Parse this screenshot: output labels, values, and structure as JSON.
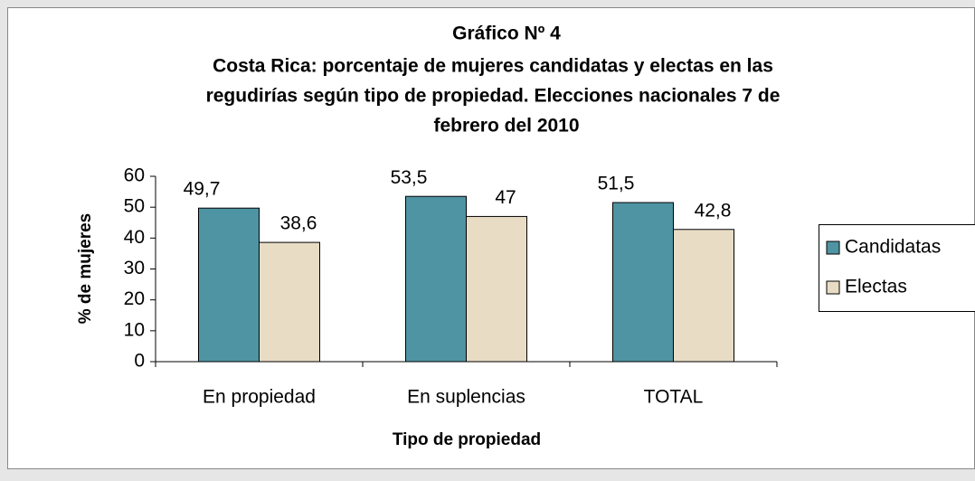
{
  "chart_data": {
    "type": "bar",
    "title": "Gráfico Nº 4",
    "subtitle_lines": [
      "Costa Rica: porcentaje de mujeres candidatas y electas en las",
      "regudirías según tipo de propiedad.  Elecciones nacionales 7 de",
      "febrero del 2010"
    ],
    "x_label": "Tipo de propiedad",
    "y_label": "% de mujeres",
    "categories": [
      "En propiedad",
      "En suplencias",
      "TOTAL"
    ],
    "series": [
      {
        "name": "Candidatas",
        "color": "#4f94a3",
        "values": [
          49.7,
          53.5,
          51.5
        ],
        "value_labels": [
          "49,7",
          "53,5",
          "51,5"
        ]
      },
      {
        "name": "Electas",
        "color": "#e8dcc5",
        "values": [
          38.6,
          47,
          42.8
        ],
        "value_labels": [
          "38,6",
          "47",
          "42,8"
        ]
      }
    ],
    "ylim": [
      0,
      60
    ],
    "yticks": [
      0,
      10,
      20,
      30,
      40,
      50,
      60
    ],
    "legend": "right"
  }
}
